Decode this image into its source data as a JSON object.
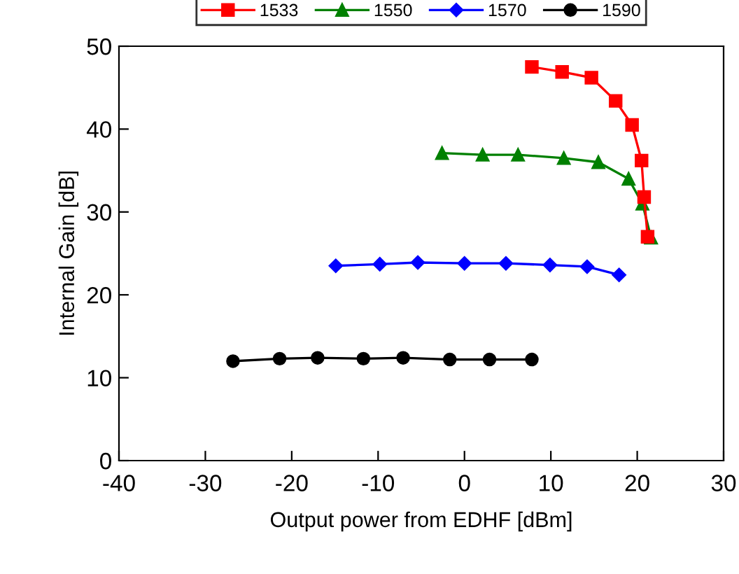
{
  "chart_data": {
    "type": "line",
    "xlabel": "Output power from EDHF [dBm]",
    "ylabel": "Internal Gain [dB]",
    "xlim": [
      -40,
      30
    ],
    "xticks": [
      -40,
      -30,
      -20,
      -10,
      0,
      10,
      20,
      30
    ],
    "ylim": [
      0,
      50
    ],
    "yticks": [
      0,
      10,
      20,
      30,
      40,
      50
    ],
    "grid": false,
    "legend": "top",
    "line_style": "solid",
    "series": [
      {
        "name": "1533",
        "color": "#ff0000",
        "marker": "square",
        "x": [
          7.8,
          11.3,
          14.7,
          17.5,
          19.4,
          20.5,
          20.8,
          21.2
        ],
        "values": [
          47.5,
          46.9,
          46.2,
          43.4,
          40.5,
          36.2,
          31.8,
          27.0
        ]
      },
      {
        "name": "1550",
        "color": "#008000",
        "marker": "triangle",
        "x": [
          -2.6,
          2.1,
          6.2,
          11.5,
          15.5,
          19.0,
          20.6,
          21.6
        ],
        "values": [
          37.1,
          36.9,
          36.9,
          36.5,
          36.0,
          34.0,
          31.0,
          26.9
        ]
      },
      {
        "name": "1570",
        "color": "#0000ff",
        "marker": "diamond",
        "x": [
          -14.9,
          -9.8,
          -5.4,
          0,
          4.8,
          9.9,
          14.2,
          17.9
        ],
        "values": [
          23.5,
          23.7,
          23.9,
          23.8,
          23.8,
          23.6,
          23.4,
          22.4
        ]
      },
      {
        "name": "1590",
        "color": "#000000",
        "marker": "circle",
        "x": [
          -26.8,
          -21.4,
          -17.0,
          -11.7,
          -7.1,
          -1.7,
          2.9,
          7.8
        ],
        "values": [
          12.0,
          12.3,
          12.4,
          12.3,
          12.4,
          12.2,
          12.2,
          12.2
        ]
      }
    ]
  }
}
